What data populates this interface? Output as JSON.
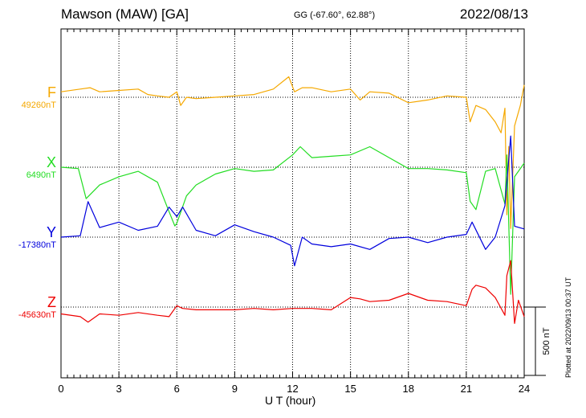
{
  "header": {
    "station": "Mawson (MAW)  [GA]",
    "coords": "GG (-67.60°,  62.88°)",
    "date": "2022/08/13"
  },
  "footer": "Plotted at 2022/09/13 00:37 UT",
  "chart_data": {
    "type": "line",
    "title": "Mawson (MAW)  [GA]",
    "xlabel": "U T (hour)",
    "x_ticks": [
      0,
      3,
      6,
      9,
      12,
      15,
      18,
      21,
      24
    ],
    "xlim": [
      0,
      24
    ],
    "grid": true,
    "scale_bar": {
      "label": "500 nT",
      "value": 500
    },
    "series": [
      {
        "name": "F",
        "baseline_label": "49260nT",
        "baseline_nT": 49260,
        "color": "#f5a800",
        "x": [
          0,
          1,
          1.5,
          2,
          3,
          4,
          4.5,
          5,
          5.6,
          6,
          6.2,
          6.5,
          7,
          8,
          9,
          10,
          11,
          11.8,
          12.1,
          12.5,
          13,
          14,
          15,
          15.5,
          16,
          17,
          18,
          19,
          20,
          21,
          21.2,
          21.5,
          22,
          22.5,
          22.8,
          23,
          23.1,
          23.2,
          23.3,
          23.5,
          23.8,
          24
        ],
        "values": [
          49300,
          49320,
          49330,
          49300,
          49310,
          49320,
          49280,
          49270,
          49260,
          49300,
          49200,
          49260,
          49250,
          49260,
          49270,
          49280,
          49320,
          49410,
          49300,
          49330,
          49330,
          49300,
          49320,
          49240,
          49300,
          49290,
          49220,
          49240,
          49270,
          49260,
          49080,
          49200,
          49170,
          49080,
          49000,
          49180,
          48400,
          48900,
          48300,
          49050,
          49200,
          49350
        ]
      },
      {
        "name": "X",
        "baseline_label": "6490nT",
        "baseline_nT": 6490,
        "color": "#22dd22",
        "x": [
          0,
          0.9,
          1.3,
          2,
          3,
          4,
          5,
          5.5,
          5.9,
          6,
          6.5,
          7,
          8,
          9,
          10,
          11,
          12,
          12.4,
          13,
          14,
          15,
          16,
          17,
          18,
          19,
          20,
          21,
          21.2,
          21.5,
          22,
          22.5,
          23,
          23.1,
          23.3,
          23.5,
          24
        ],
        "values": [
          6490,
          6480,
          6260,
          6360,
          6420,
          6460,
          6380,
          6200,
          6060,
          6080,
          6280,
          6360,
          6440,
          6480,
          6460,
          6470,
          6580,
          6640,
          6560,
          6570,
          6580,
          6640,
          6560,
          6480,
          6480,
          6470,
          6450,
          6240,
          6180,
          6460,
          6480,
          6220,
          6580,
          5560,
          6420,
          6520
        ]
      },
      {
        "name": "Y",
        "baseline_label": "-17380nT",
        "baseline_nT": -17380,
        "color": "#0000dd",
        "x": [
          0,
          1,
          1.4,
          2,
          3,
          4,
          5,
          5.6,
          6,
          6.3,
          7,
          8,
          9,
          10,
          11,
          11.9,
          12.1,
          12.5,
          13,
          14,
          15,
          16,
          17,
          18,
          19,
          20,
          21,
          21.3,
          22,
          22.5,
          23,
          23.3,
          23.5,
          24
        ],
        "values": [
          -17380,
          -17370,
          -17120,
          -17310,
          -17270,
          -17330,
          -17300,
          -17160,
          -17230,
          -17160,
          -17330,
          -17370,
          -17290,
          -17340,
          -17380,
          -17440,
          -17590,
          -17380,
          -17430,
          -17450,
          -17430,
          -17470,
          -17390,
          -17380,
          -17420,
          -17380,
          -17360,
          -17270,
          -17470,
          -17380,
          -17150,
          -16640,
          -17300,
          -17320
        ]
      },
      {
        "name": "Z",
        "baseline_label": "-45630nT",
        "baseline_nT": -45630,
        "color": "#ee0000",
        "x": [
          0,
          1,
          1.4,
          2,
          3,
          4,
          5,
          5.6,
          6,
          6.3,
          7,
          8,
          9,
          10,
          11,
          12,
          13,
          14,
          15,
          15.5,
          16,
          17,
          18,
          19,
          20,
          21,
          21.3,
          21.5,
          22,
          22.5,
          23,
          23.1,
          23.3,
          23.5,
          23.7,
          24
        ],
        "values": [
          -45680,
          -45700,
          -45740,
          -45680,
          -45690,
          -45670,
          -45690,
          -45700,
          -45620,
          -45640,
          -45650,
          -45650,
          -45650,
          -45640,
          -45650,
          -45640,
          -45640,
          -45650,
          -45560,
          -45570,
          -45590,
          -45580,
          -45530,
          -45580,
          -45590,
          -45620,
          -45500,
          -45470,
          -45490,
          -45560,
          -45690,
          -45400,
          -45290,
          -45750,
          -45580,
          -45700
        ]
      }
    ]
  }
}
